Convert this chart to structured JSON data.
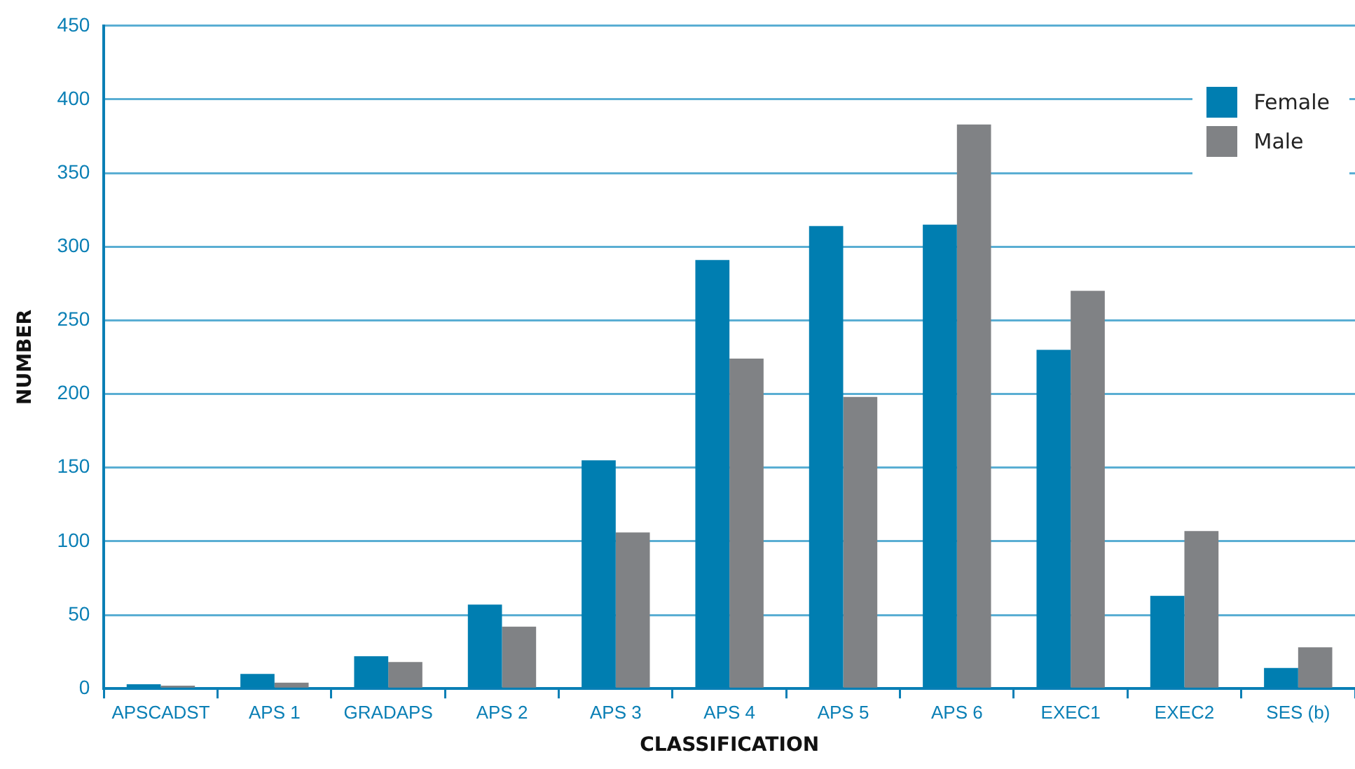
{
  "chart_data": {
    "type": "bar",
    "xlabel": "CLASSIFICATION",
    "ylabel": "NUMBER",
    "categories": [
      "APSCADST",
      "APS 1",
      "GRADAPS",
      "APS 2",
      "APS 3",
      "APS 4",
      "APS 5",
      "APS 6",
      "EXEC1",
      "EXEC2",
      "SES (b)"
    ],
    "series": [
      {
        "name": "Female",
        "color": "#007eb1",
        "values": [
          3,
          10,
          22,
          57,
          155,
          291,
          314,
          315,
          230,
          63,
          14
        ]
      },
      {
        "name": "Male",
        "color": "#808285",
        "values": [
          2,
          4,
          18,
          42,
          106,
          224,
          198,
          383,
          270,
          107,
          28
        ]
      }
    ],
    "ylim": [
      0,
      450
    ],
    "yticks": [
      0,
      50,
      100,
      150,
      200,
      250,
      300,
      350,
      400,
      450
    ],
    "grid": "y",
    "legend": "top right"
  }
}
